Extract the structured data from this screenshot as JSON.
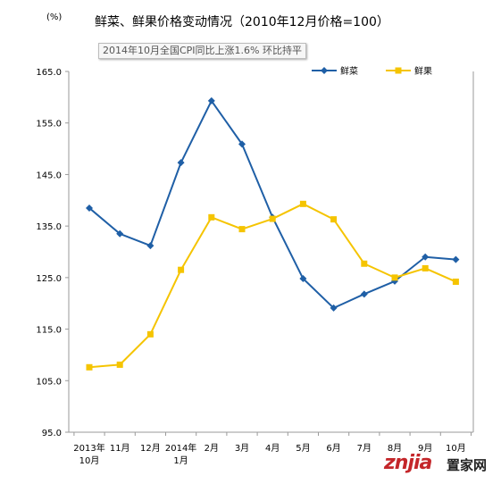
{
  "tooltip": "2014年10月全国CPI同比上涨1.6% 环比持平",
  "watermark": {
    "latin": "znjia",
    "cjk": "置家网"
  },
  "chart_data": {
    "type": "line",
    "title": "鲜菜、鲜果价格变动情况（2010年12月价格=100）",
    "ylabel": "(%)",
    "xlabel": "",
    "categories": [
      [
        "2013年",
        "10月"
      ],
      [
        "11月"
      ],
      [
        "12月"
      ],
      [
        "2014年",
        "1月"
      ],
      [
        "2月"
      ],
      [
        "3月"
      ],
      [
        "4月"
      ],
      [
        "5月"
      ],
      [
        "6月"
      ],
      [
        "7月"
      ],
      [
        "8月"
      ],
      [
        "9月"
      ],
      [
        "10月"
      ]
    ],
    "ylim": [
      95.0,
      165.0
    ],
    "yticks": [
      "95.0",
      "105.0",
      "115.0",
      "125.0",
      "135.0",
      "145.0",
      "155.0",
      "165.0"
    ],
    "grid": false,
    "legend": "top-right",
    "series": [
      {
        "name": "鲜菜",
        "color": "#1f5fa6",
        "marker": "diamond",
        "values": [
          138.5,
          133.5,
          131.2,
          147.3,
          159.3,
          150.9,
          136.7,
          124.8,
          119.1,
          121.8,
          124.3,
          129.0,
          128.5
        ]
      },
      {
        "name": "鲜果",
        "color": "#f5c400",
        "marker": "square",
        "values": [
          107.6,
          108.1,
          114.0,
          126.5,
          136.7,
          134.4,
          136.4,
          139.3,
          136.3,
          127.7,
          125.0,
          126.8,
          124.2
        ]
      }
    ]
  }
}
